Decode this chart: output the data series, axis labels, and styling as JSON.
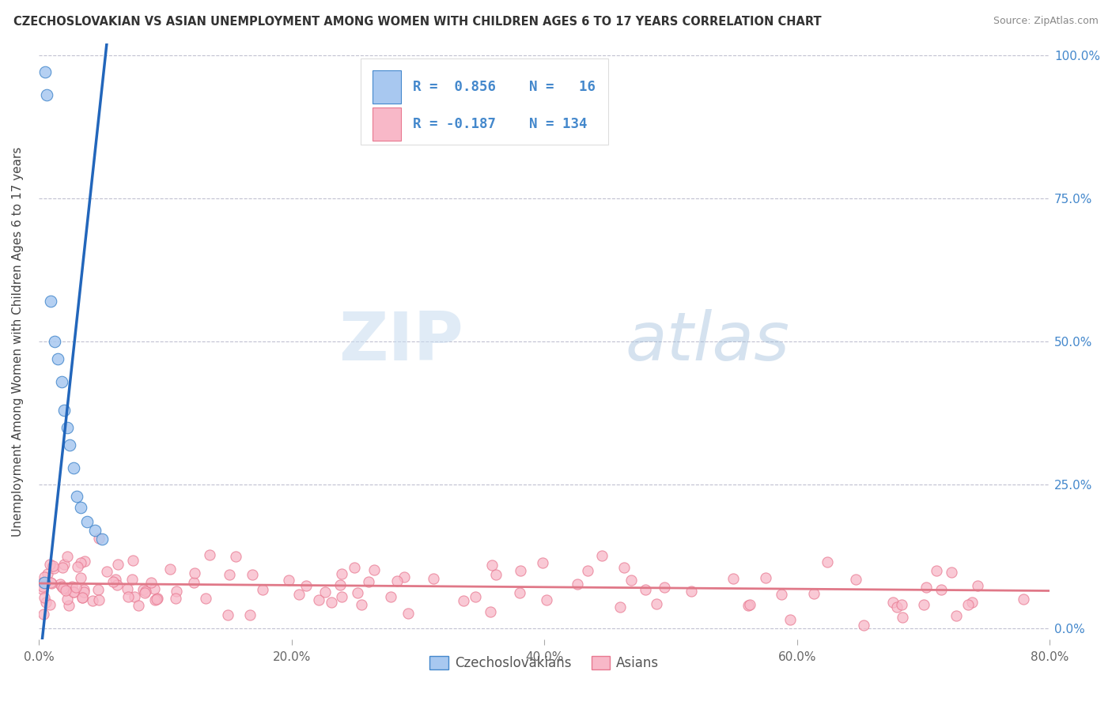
{
  "title": "CZECHOSLOVAKIAN VS ASIAN UNEMPLOYMENT AMONG WOMEN WITH CHILDREN AGES 6 TO 17 YEARS CORRELATION CHART",
  "source": "Source: ZipAtlas.com",
  "ylabel": "Unemployment Among Women with Children Ages 6 to 17 years",
  "xlim": [
    0.0,
    0.8
  ],
  "ylim": [
    -0.02,
    1.02
  ],
  "legend_line1": "R =  0.856   N =   16",
  "legend_line2": "R = -0.187   N = 134",
  "legend_label1": "Czechoslovakians",
  "legend_label2": "Asians",
  "color_blue_fill": "#A8C8F0",
  "color_blue_edge": "#4488CC",
  "color_pink_fill": "#F8B8C8",
  "color_pink_edge": "#E87890",
  "color_blue_line": "#2266BB",
  "color_pink_line": "#E07888",
  "legend_text_color": "#4488CC",
  "axis_tick_color": "#4488CC",
  "title_color": "#333333",
  "source_color": "#888888",
  "ylabel_color": "#444444",
  "grid_color": "#BBBBCC",
  "background_color": "#FFFFFF",
  "watermark_zip": "ZIP",
  "watermark_atlas": "atlas",
  "xtick_labels": [
    "0.0%",
    "20.0%",
    "40.0%",
    "60.0%",
    "80.0%"
  ],
  "xtick_vals": [
    0.0,
    0.2,
    0.4,
    0.6,
    0.8
  ],
  "ytick_vals": [
    0.0,
    0.25,
    0.5,
    0.75,
    1.0
  ],
  "ytick_labels": [
    "0.0%",
    "25.0%",
    "50.0%",
    "75.0%",
    "100.0%"
  ],
  "blue_x": [
    0.004,
    0.005,
    0.006,
    0.009,
    0.012,
    0.015,
    0.018,
    0.02,
    0.022,
    0.024,
    0.027,
    0.03,
    0.033,
    0.038,
    0.044,
    0.05
  ],
  "blue_y": [
    0.08,
    0.97,
    0.93,
    0.57,
    0.5,
    0.47,
    0.43,
    0.38,
    0.35,
    0.32,
    0.28,
    0.23,
    0.21,
    0.185,
    0.17,
    0.155
  ],
  "blue_line_x": [
    0.0,
    0.055
  ],
  "blue_line_y": [
    -0.07,
    1.05
  ],
  "pink_line_x": [
    0.0,
    0.8
  ],
  "pink_line_y": [
    0.078,
    0.065
  ]
}
